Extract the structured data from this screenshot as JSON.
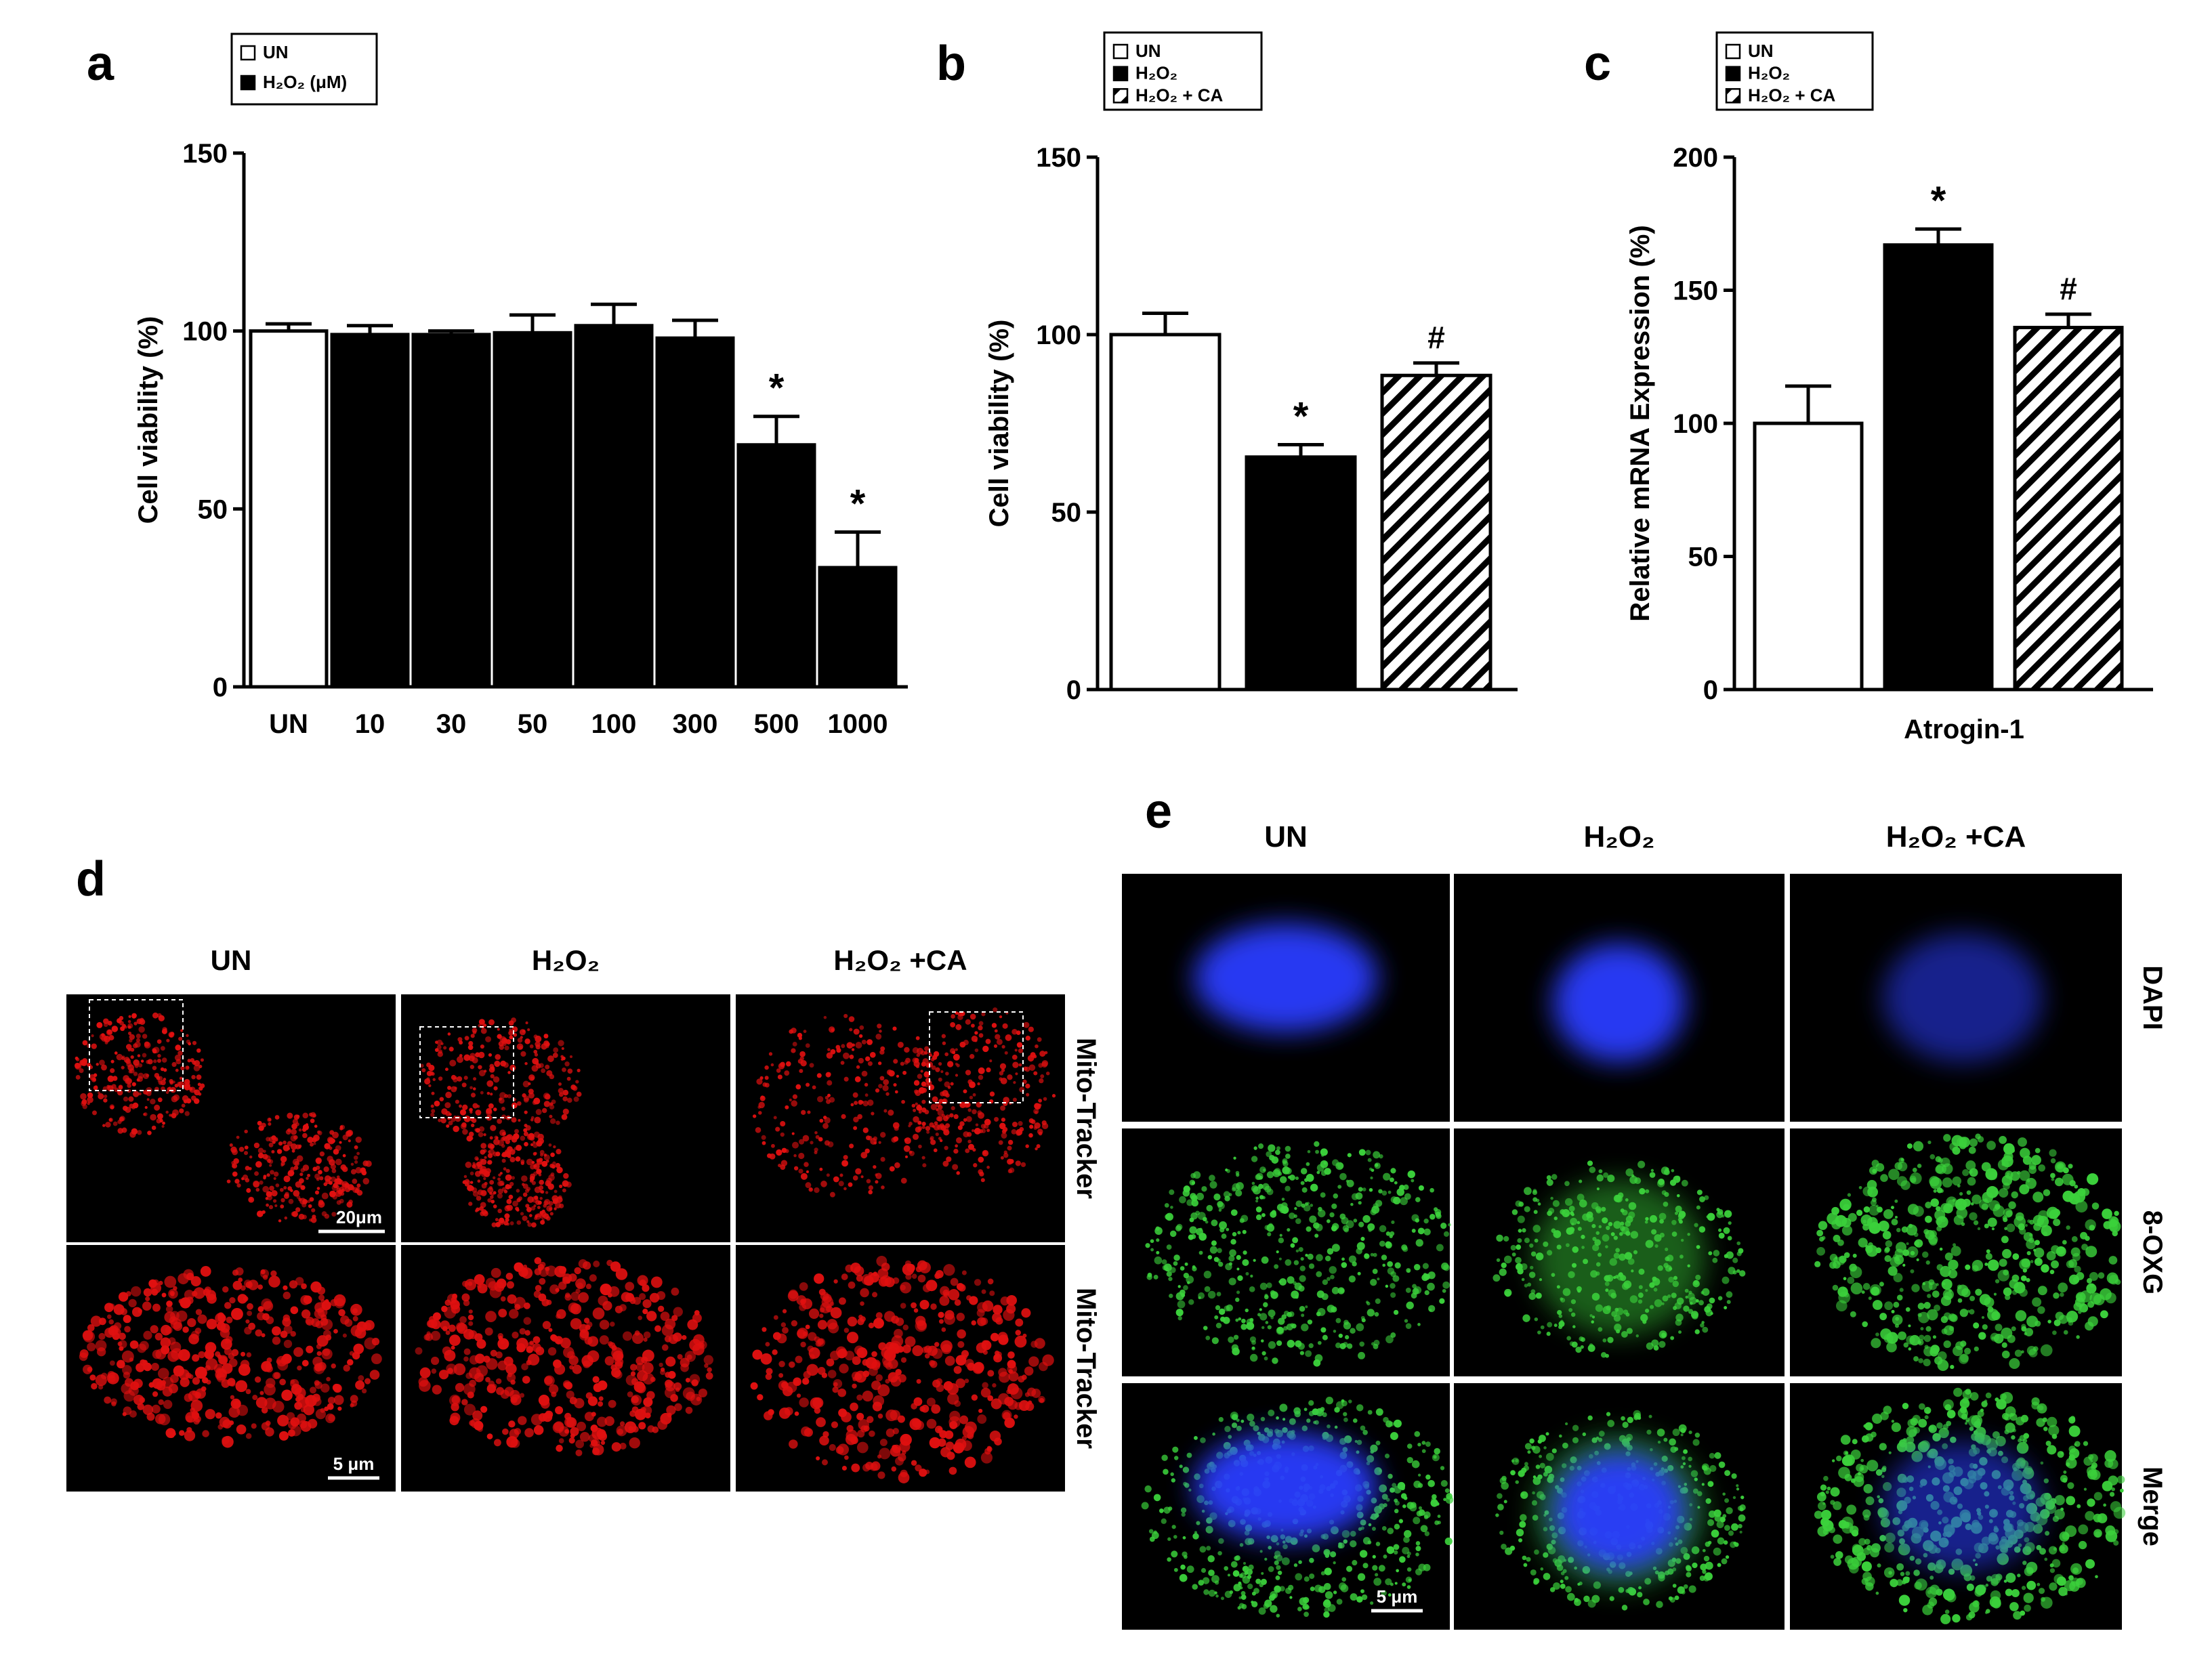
{
  "panel_letters": {
    "a": "a",
    "b": "b",
    "c": "c",
    "d": "d",
    "e": "e"
  },
  "colors": {
    "bar_fill_dark": "#000000",
    "bar_fill_light": "#ffffff",
    "mito_red": "#e01010",
    "dapi_blue": "#2a3cff",
    "oxg_green": "#3bd13b",
    "micrograph_bg": "#000000"
  },
  "chart_data": [
    {
      "panel": "a",
      "type": "bar",
      "categories": [
        "UN",
        "10",
        "30",
        "50",
        "100",
        "300",
        "500",
        "1000"
      ],
      "series": [
        {
          "values": [
            100,
            99,
            99,
            99.5,
            101.5,
            98,
            68,
            33.5
          ],
          "errors": [
            2,
            2.5,
            1,
            5,
            6,
            5,
            8,
            10
          ],
          "fills": [
            "white",
            "black",
            "black",
            "black",
            "black",
            "black",
            "black",
            "black"
          ],
          "sig": [
            "",
            "",
            "",
            "",
            "",
            "",
            "*",
            "*"
          ]
        }
      ],
      "ylabel": "Cell viability (%)",
      "xlabel": "",
      "ylim": [
        0,
        150
      ],
      "yticks": [
        0,
        50,
        100,
        150
      ],
      "legend": {
        "placement": "top-left",
        "entries": [
          {
            "label": "UN",
            "sym": "white"
          },
          {
            "label": "H₂O₂ (μM)",
            "sym": "black"
          }
        ]
      }
    },
    {
      "panel": "b",
      "type": "bar",
      "categories": [
        "",
        "",
        ""
      ],
      "series": [
        {
          "values": [
            100,
            65.5,
            88.5
          ],
          "errors": [
            6,
            3.5,
            3.5
          ],
          "fills": [
            "white",
            "black",
            "hatch"
          ],
          "sig": [
            "",
            "*",
            "#"
          ]
        }
      ],
      "ylabel": "Cell viability (%)",
      "xlabel": "",
      "ylim": [
        0,
        150
      ],
      "yticks": [
        0,
        50,
        100,
        150
      ],
      "legend": {
        "placement": "top-left",
        "entries": [
          {
            "label": "UN",
            "sym": "white"
          },
          {
            "label": "H₂O₂",
            "sym": "black"
          },
          {
            "label": "H₂O₂  + CA",
            "sym": "hatch"
          }
        ]
      }
    },
    {
      "panel": "c",
      "type": "bar",
      "categories": [
        "",
        "",
        ""
      ],
      "series": [
        {
          "values": [
            100,
            167,
            136
          ],
          "errors": [
            14,
            6,
            5
          ],
          "fills": [
            "white",
            "black",
            "hatch"
          ],
          "sig": [
            "",
            "*",
            "#"
          ]
        }
      ],
      "ylabel": "Relative mRNA  Expression (%)",
      "xlabel": "Atrogin-1",
      "ylim": [
        0,
        200
      ],
      "yticks": [
        0,
        50,
        100,
        150,
        200
      ],
      "legend": {
        "placement": "top-left",
        "entries": [
          {
            "label": "UN",
            "sym": "white"
          },
          {
            "label": "H₂O₂",
            "sym": "black"
          },
          {
            "label": "H₂O₂  + CA",
            "sym": "hatch"
          }
        ]
      }
    }
  ],
  "panel_d": {
    "columns": [
      "UN",
      "H₂O₂",
      "H₂O₂ +CA"
    ],
    "row_labels": [
      "Mito-Tracker",
      "Mito-Tracker"
    ],
    "scale_bars": [
      "20μm",
      "5 μm"
    ]
  },
  "panel_e": {
    "columns": [
      "UN",
      "H₂O₂",
      "H₂O₂ +CA"
    ],
    "row_labels": [
      "DAPI",
      "8-OXG",
      "Merge"
    ],
    "scale_bar": "5 μm"
  }
}
